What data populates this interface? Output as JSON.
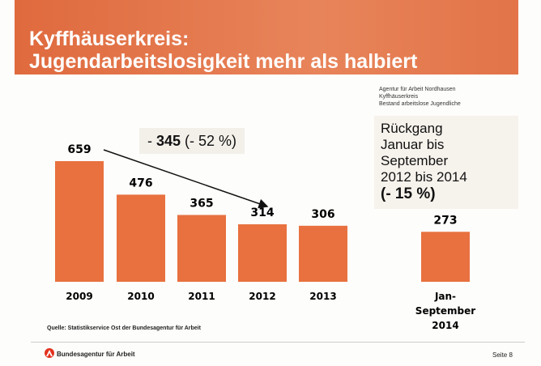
{
  "title_line1": "Kyffhäuserkreis:",
  "title_line2": "Jugendarbeitslosigkeit mehr als halbiert",
  "source_note": [
    "Agentur für Arbeit Nordhausen",
    "Kyffhäuserkreis",
    "Bestand arbeitslose Jugendliche"
  ],
  "callout": {
    "prefix": "- ",
    "value": "345",
    "suffix": " (- 52 %)"
  },
  "side_box": [
    "Rückgang",
    "Januar bis",
    "September",
    "2012 bis 2014",
    "(- 15 %)"
  ],
  "source": "Quelle: Statistikservice Ost der Bundesagentur für Arbeit",
  "footer": {
    "org": "Bundesagentur für Arbeit",
    "page": "Seite 8"
  },
  "colors": {
    "bar": "#e8713f",
    "header": "#e0703f"
  },
  "chart_data": {
    "type": "bar",
    "categories": [
      "2009",
      "2010",
      "2011",
      "2012",
      "2013",
      "Jan-\nSeptember\n2014"
    ],
    "values": [
      659,
      476,
      365,
      314,
      306,
      273
    ],
    "annotations": [
      "arrow from 2009 to 2012"
    ],
    "grid": false
  }
}
